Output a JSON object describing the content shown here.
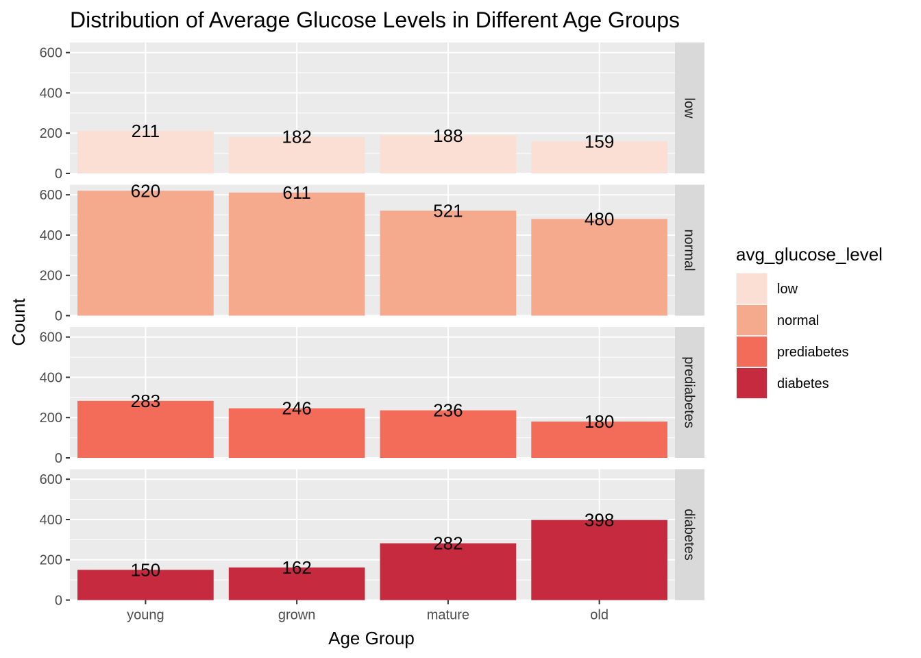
{
  "chart_data": {
    "type": "bar",
    "title": "Distribution of Average Glucose Levels in Different Age Groups",
    "xlabel": "Age Group",
    "ylabel": "Count",
    "categories": [
      "young",
      "grown",
      "mature",
      "old"
    ],
    "ylim": [
      0,
      650
    ],
    "yticks": [
      0,
      200,
      400,
      600
    ],
    "facet_by": "avg_glucose_level",
    "legend": {
      "title": "avg_glucose_level",
      "position": "right"
    },
    "grid": true,
    "series": [
      {
        "name": "low",
        "color": "#FBDED4",
        "values": [
          211,
          182,
          188,
          159
        ]
      },
      {
        "name": "normal",
        "color": "#F5AA8E",
        "values": [
          620,
          611,
          521,
          480
        ]
      },
      {
        "name": "prediabetes",
        "color": "#F36B59",
        "values": [
          283,
          246,
          236,
          180
        ]
      },
      {
        "name": "diabetes",
        "color": "#C52A3E",
        "values": [
          150,
          162,
          282,
          398
        ]
      }
    ]
  },
  "colors": {
    "panel_background": "#EBEBEB",
    "strip_background": "#D9D9D9",
    "grid": "#FFFFFF"
  }
}
